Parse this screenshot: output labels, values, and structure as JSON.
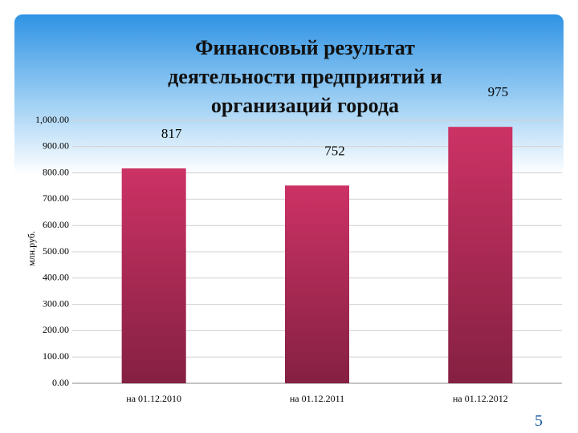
{
  "chart_data": {
    "type": "bar",
    "title": "Финансовый результат деятельности предприятий и организаций города",
    "y_label": "млн.руб.",
    "categories": [
      "на 01.12.2010",
      "на 01.12.2011",
      "на 01.12.2012"
    ],
    "values": [
      817,
      752,
      975
    ],
    "color": "#cc3265",
    "ylim": [
      0,
      1000
    ],
    "yticks": [
      {
        "value": 0,
        "label": "0.00"
      },
      {
        "value": 100,
        "label": "100.00"
      },
      {
        "value": 200,
        "label": "200.00"
      },
      {
        "value": 300,
        "label": "300.00"
      },
      {
        "value": 400,
        "label": "400.00"
      },
      {
        "value": 500,
        "label": "500.00"
      },
      {
        "value": 600,
        "label": "600.00"
      },
      {
        "value": 700,
        "label": "700.00"
      },
      {
        "value": 800,
        "label": "800.00"
      },
      {
        "value": 900,
        "label": "900.00"
      },
      {
        "value": 1000,
        "label": "1,000.00"
      }
    ],
    "grid": true
  },
  "page_number": "5"
}
